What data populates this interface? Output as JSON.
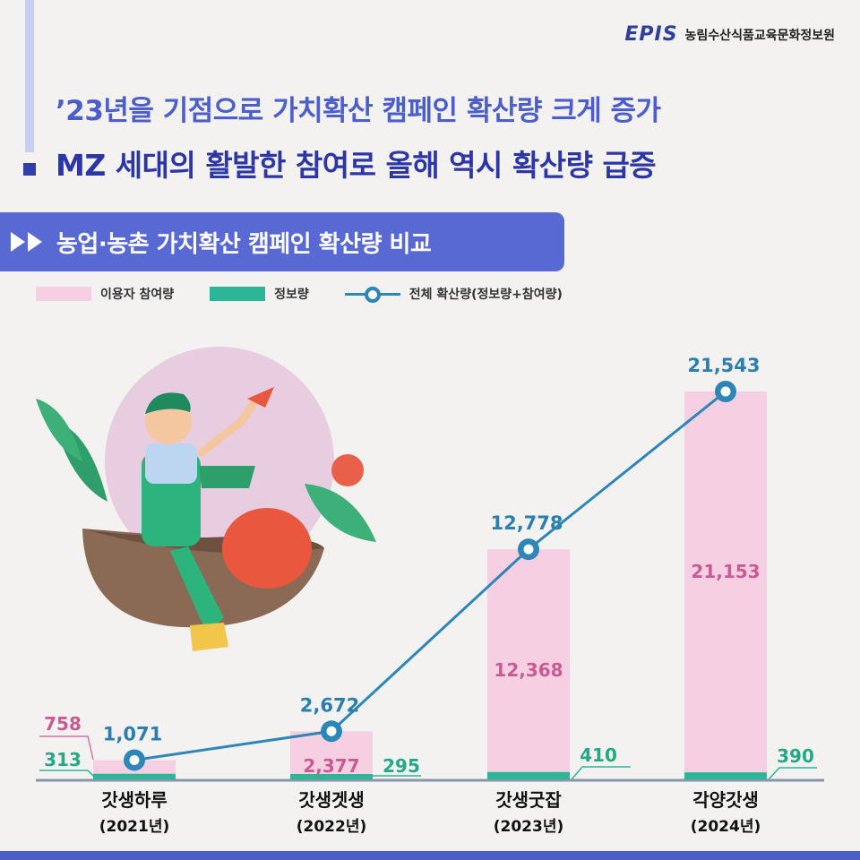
{
  "logo": {
    "mark": "EPIS",
    "org": "농림수산식품교육문화정보원"
  },
  "headline": {
    "line1": "’23년을 기점으로 가치확산 캠페인 확산량 크게 증가",
    "line2": "MZ 세대의 활발한 참여로 올해 역시 확산량 급증"
  },
  "colors": {
    "pink": "#f7cfe3",
    "green": "#2cb596",
    "line": "#2c86b8",
    "accent": "#5869d4"
  },
  "chart_data": {
    "type": "bar",
    "title": "농업·농촌 가치확산 캠페인 확산량 비교",
    "legend": [
      "이용자 참여량",
      "정보량",
      "전체 확산량(정보량+참여량)"
    ],
    "legend_position": "top-left",
    "categories": [
      {
        "name": "갓생하루",
        "year": "(2021년)"
      },
      {
        "name": "갓생겟생",
        "year": "(2022년)"
      },
      {
        "name": "갓생굿잡",
        "year": "(2023년)"
      },
      {
        "name": "각양갓생",
        "year": "(2024년)"
      }
    ],
    "series": [
      {
        "name": "이용자 참여량",
        "type": "bar",
        "values": [
          758,
          2377,
          12368,
          21153
        ],
        "labels": [
          "758",
          "2,377",
          "12,368",
          "21,153"
        ]
      },
      {
        "name": "정보량",
        "type": "bar",
        "values": [
          313,
          295,
          410,
          390
        ],
        "labels": [
          "313",
          "295",
          "410",
          "390"
        ]
      },
      {
        "name": "전체 확산량(정보량+참여량)",
        "type": "line",
        "values": [
          1071,
          2672,
          12778,
          21543
        ],
        "labels": [
          "1,071",
          "2,672",
          "12,778",
          "21,543"
        ]
      }
    ],
    "ylim": [
      0,
      24000
    ],
    "grid": false
  }
}
